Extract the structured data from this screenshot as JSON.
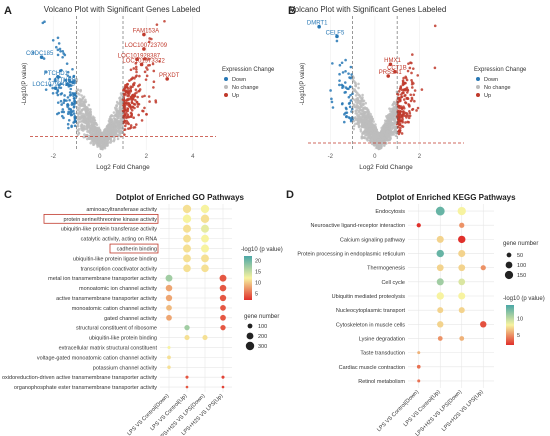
{
  "panels": {
    "A": {
      "letter": "A",
      "title": "Volcano Plot with Significant Genes Labeled"
    },
    "B": {
      "letter": "B",
      "title": "Volcano Plot with Significant Genes Labeled"
    },
    "C": {
      "letter": "C",
      "title": "Dotplot of Enriched GO Pathways"
    },
    "D": {
      "letter": "D",
      "title": "Dotplot of Enriched KEGG Pathways"
    }
  },
  "colors": {
    "down": "#2878b5",
    "up": "#c0392b",
    "no_change": "#bdbdbd",
    "threshold": "#c0392b",
    "highlight": "#c0392b"
  },
  "chart_data": [
    {
      "panel": "A",
      "type": "scatter",
      "title": "Volcano Plot with Significant Genes Labeled",
      "xlabel": "Log2 Fold Change",
      "ylabel": "-Log10(P value)",
      "xlim": [
        -3,
        5
      ],
      "ylim": [
        0,
        13
      ],
      "xticks": [
        -2,
        0,
        2,
        4
      ],
      "thresholds": {
        "log2fc": [
          -1,
          1
        ],
        "neg_log10_p": 1.3
      },
      "legend": {
        "title": "Expression Change",
        "entries": [
          "Down",
          "No change",
          "Up"
        ],
        "placement": "right"
      },
      "labeled_genes": [
        {
          "name": "FAM153A",
          "x": 1.9,
          "y": 11.2,
          "group": "Up"
        },
        {
          "name": "LOC100723709",
          "x": 1.9,
          "y": 9.8,
          "group": "Up"
        },
        {
          "name": "LOC101928387",
          "x": 1.6,
          "y": 8.8,
          "group": "Up"
        },
        {
          "name": "LOC101973372",
          "x": 1.8,
          "y": 8.3,
          "group": "Up"
        },
        {
          "name": "PRXDT",
          "x": 2.9,
          "y": 6.9,
          "group": "Up"
        },
        {
          "name": "CCDC185",
          "x": -2.5,
          "y": 9.0,
          "group": "Down"
        },
        {
          "name": "PTCHD1",
          "x": -1.8,
          "y": 7.1,
          "group": "Down"
        },
        {
          "name": "MTNRB",
          "x": -1.4,
          "y": 6.4,
          "group": "Down"
        },
        {
          "name": "LOC107984318",
          "x": -1.9,
          "y": 6.0,
          "group": "Down"
        }
      ]
    },
    {
      "panel": "B",
      "type": "scatter",
      "title": "Volcano Plot with Significant Genes Labeled",
      "xlabel": "Log2 Fold Change",
      "ylabel": "-Log10(P value)",
      "xlim": [
        -3,
        4
      ],
      "ylim": [
        0,
        25
      ],
      "xticks": [
        -2,
        0,
        2
      ],
      "thresholds": {
        "log2fc": [
          -1,
          1
        ],
        "neg_log10_p": 1.3
      },
      "legend": {
        "title": "Expression Change",
        "entries": [
          "Down",
          "No change",
          "Up"
        ],
        "placement": "right"
      },
      "labeled_genes": [
        {
          "name": "DMRT1",
          "x": -2.5,
          "y": 23.0,
          "group": "Down"
        },
        {
          "name": "CELF5",
          "x": -1.7,
          "y": 21.2,
          "group": "Down"
        },
        {
          "name": "HMX1",
          "x": 0.7,
          "y": 16.0,
          "group": "Up"
        },
        {
          "name": "CCT1B",
          "x": 0.9,
          "y": 14.6,
          "group": "Up"
        },
        {
          "name": "PRSS41",
          "x": 0.6,
          "y": 13.8,
          "group": "Up"
        }
      ]
    },
    {
      "panel": "C",
      "type": "scatter",
      "title": "Dotplot of Enriched GO Pathways",
      "categories_x": [
        "LPS VS Control(Down)",
        "LPS VS Control(Up)",
        "LPS+H2S VS LPS(Down)",
        "LPS+H2S VS LPS(Up)"
      ],
      "categories_y": [
        "aminoacyltransferase activity",
        "protein serine/threonine kinase activity",
        "ubiquitin-like protein transferase activity",
        "catalytic activity, acting on RNA",
        "cadherin binding",
        "ubiquitin-like protein ligase binding",
        "transcription coactivator activity",
        "metal ion transmembrane transporter activity",
        "monoatomic ion channel activity",
        "active transmembrane transporter activity",
        "monoatomic cation channel activity",
        "gated channel activity",
        "structural constituent of ribosome",
        "ubiquitin-like protein binding",
        "extracellular matrix structural constituent",
        "voltage-gated monoatomic cation channel activity",
        "potassium channel activity",
        "oxidoreduction-driven active transmembrane transporter activity",
        "organophosphate ester transmembrane transporter activity"
      ],
      "highlighted_terms": [
        "protein serine/threonine kinase activity",
        "cadherin binding"
      ],
      "color_legend": {
        "title": "-log10 (p value)",
        "ticks": [
          20,
          15,
          10,
          5
        ],
        "range": [
          2,
          22
        ]
      },
      "size_legend": {
        "title": "gene number",
        "values": [
          100,
          200,
          300
        ]
      },
      "points": [
        {
          "x": 1,
          "y": 0,
          "value": 11,
          "size": 290
        },
        {
          "x": 2,
          "y": 0,
          "value": 12,
          "size": 290
        },
        {
          "x": 1,
          "y": 1,
          "value": 12,
          "size": 300
        },
        {
          "x": 2,
          "y": 1,
          "value": 11,
          "size": 300
        },
        {
          "x": 1,
          "y": 2,
          "value": 11,
          "size": 270
        },
        {
          "x": 2,
          "y": 2,
          "value": 13,
          "size": 270
        },
        {
          "x": 1,
          "y": 3,
          "value": 11,
          "size": 260
        },
        {
          "x": 2,
          "y": 3,
          "value": 12,
          "size": 260
        },
        {
          "x": 1,
          "y": 4,
          "value": 11,
          "size": 270
        },
        {
          "x": 2,
          "y": 4,
          "value": 12,
          "size": 270
        },
        {
          "x": 1,
          "y": 5,
          "value": 11,
          "size": 260
        },
        {
          "x": 2,
          "y": 5,
          "value": 11,
          "size": 260
        },
        {
          "x": 1,
          "y": 6,
          "value": 11,
          "size": 240
        },
        {
          "x": 2,
          "y": 6,
          "value": 11,
          "size": 240
        },
        {
          "x": 0,
          "y": 7,
          "value": 17,
          "size": 200
        },
        {
          "x": 3,
          "y": 7,
          "value": 4,
          "size": 200
        },
        {
          "x": 0,
          "y": 8,
          "value": 8,
          "size": 180
        },
        {
          "x": 3,
          "y": 8,
          "value": 4,
          "size": 180
        },
        {
          "x": 0,
          "y": 9,
          "value": 8,
          "size": 170
        },
        {
          "x": 3,
          "y": 9,
          "value": 4,
          "size": 170
        },
        {
          "x": 0,
          "y": 10,
          "value": 9,
          "size": 140
        },
        {
          "x": 3,
          "y": 10,
          "value": 4,
          "size": 140
        },
        {
          "x": 0,
          "y": 11,
          "value": 8,
          "size": 140
        },
        {
          "x": 3,
          "y": 11,
          "value": 4,
          "size": 140
        },
        {
          "x": 1,
          "y": 12,
          "value": 17,
          "size": 120
        },
        {
          "x": 3,
          "y": 12,
          "value": 4,
          "size": 120
        },
        {
          "x": 1,
          "y": 13,
          "value": 11,
          "size": 110
        },
        {
          "x": 2,
          "y": 13,
          "value": 11,
          "size": 110
        },
        {
          "x": 0,
          "y": 14,
          "value": 12,
          "size": 40
        },
        {
          "x": 0,
          "y": 15,
          "value": 11,
          "size": 60
        },
        {
          "x": 0,
          "y": 16,
          "value": 11,
          "size": 50
        },
        {
          "x": 1,
          "y": 17,
          "value": 4,
          "size": 40
        },
        {
          "x": 3,
          "y": 17,
          "value": 3,
          "size": 40
        },
        {
          "x": 1,
          "y": 18,
          "value": 4,
          "size": 30
        },
        {
          "x": 3,
          "y": 18,
          "value": 3,
          "size": 30
        }
      ]
    },
    {
      "panel": "D",
      "type": "scatter",
      "title": "Dotplot of Enriched KEGG Pathways",
      "categories_x": [
        "LPS VS Control(Down)",
        "LPS VS Control(Up)",
        "LPS+H2S VS LPS(Down)",
        "LPS+H2S VS LPS(Up)"
      ],
      "categories_y": [
        "Endocytosis",
        "Neuroactive ligand-receptor interaction",
        "Calcium signaling pathway",
        "Protein processing in endoplasmic reticulum",
        "Thermogenesis",
        "Cell cycle",
        "Ubiquitin mediated proteolysis",
        "Nucleocytoplasmic transport",
        "Cytoskeleton in muscle cells",
        "Lysine degradation",
        "Taste transduction",
        "Cardiac muscle contraction",
        "Retinol metabolism"
      ],
      "color_legend": {
        "title": "-log10 (p value)",
        "ticks": [
          10,
          5
        ],
        "range": [
          2,
          14
        ]
      },
      "size_legend": {
        "title": "gene number",
        "values": [
          50,
          100,
          150
        ]
      },
      "points": [
        {
          "x": 1,
          "y": 0,
          "value": 13,
          "size": 170
        },
        {
          "x": 2,
          "y": 0,
          "value": 8,
          "size": 150
        },
        {
          "x": 0,
          "y": 1,
          "value": 2,
          "size": 40
        },
        {
          "x": 2,
          "y": 1,
          "value": 5,
          "size": 60
        },
        {
          "x": 1,
          "y": 2,
          "value": 7,
          "size": 110
        },
        {
          "x": 2,
          "y": 2,
          "value": 2,
          "size": 120
        },
        {
          "x": 1,
          "y": 3,
          "value": 13,
          "size": 120
        },
        {
          "x": 2,
          "y": 3,
          "value": 7,
          "size": 110
        },
        {
          "x": 1,
          "y": 4,
          "value": 7,
          "size": 100
        },
        {
          "x": 2,
          "y": 4,
          "value": 7,
          "size": 100
        },
        {
          "x": 3,
          "y": 4,
          "value": 5,
          "size": 60
        },
        {
          "x": 1,
          "y": 5,
          "value": 11,
          "size": 110
        },
        {
          "x": 2,
          "y": 5,
          "value": 9,
          "size": 100
        },
        {
          "x": 1,
          "y": 6,
          "value": 8,
          "size": 120
        },
        {
          "x": 2,
          "y": 6,
          "value": 8,
          "size": 110
        },
        {
          "x": 1,
          "y": 7,
          "value": 7,
          "size": 80
        },
        {
          "x": 2,
          "y": 7,
          "value": 7,
          "size": 80
        },
        {
          "x": 1,
          "y": 8,
          "value": 7,
          "size": 90
        },
        {
          "x": 3,
          "y": 8,
          "value": 3,
          "size": 90
        },
        {
          "x": 1,
          "y": 9,
          "value": 5,
          "size": 50
        },
        {
          "x": 2,
          "y": 9,
          "value": 6,
          "size": 50
        },
        {
          "x": 0,
          "y": 10,
          "value": 6,
          "size": 20
        },
        {
          "x": 0,
          "y": 11,
          "value": 4,
          "size": 30
        },
        {
          "x": 0,
          "y": 12,
          "value": 4,
          "size": 20
        }
      ]
    }
  ]
}
